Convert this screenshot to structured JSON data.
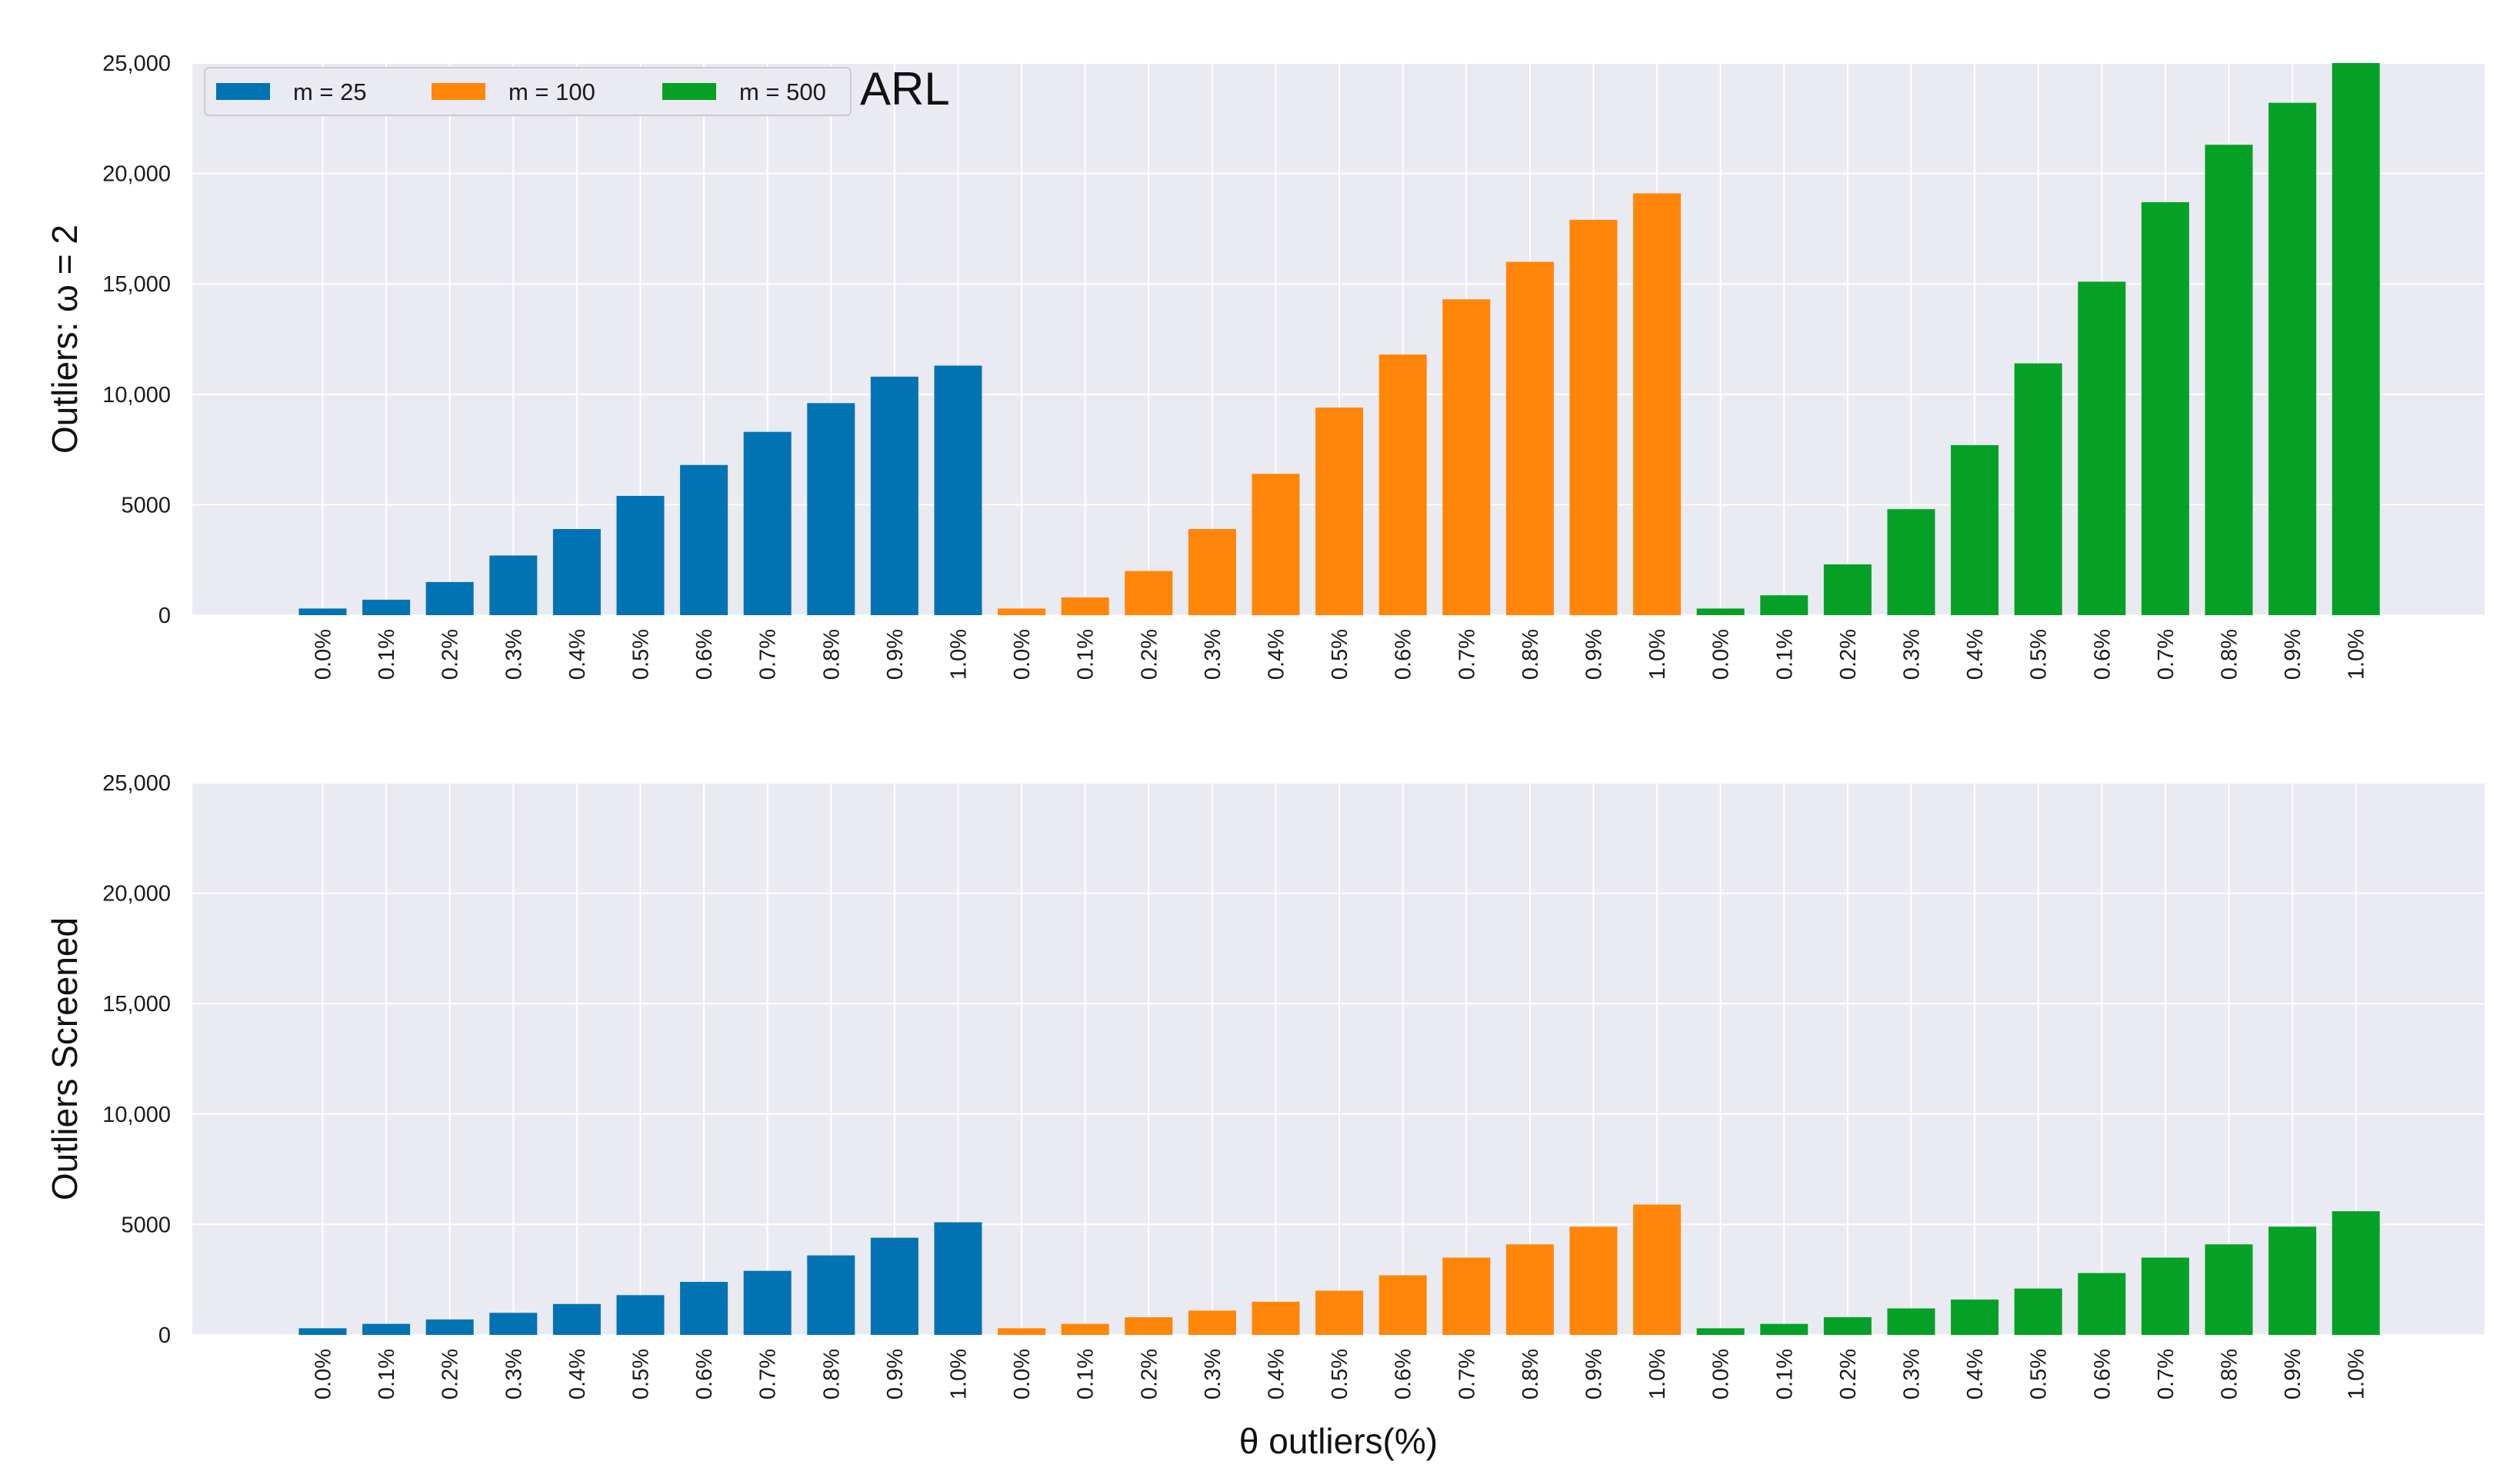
{
  "chart_data": [
    {
      "type": "bar",
      "panel": "top",
      "ylabel": "Outliers:  ω  =  2",
      "xlabel": "",
      "annotation": "ARL",
      "ylim": [
        0,
        25000
      ],
      "yticks": [
        0,
        5000,
        10000,
        15000,
        20000,
        25000
      ],
      "ytick_labels": [
        "0",
        "5000",
        "10,000",
        "15,000",
        "20,000",
        "25,000"
      ],
      "categories": [
        "0.0%",
        "0.1%",
        "0.2%",
        "0.3%",
        "0.4%",
        "0.5%",
        "0.6%",
        "0.7%",
        "0.8%",
        "0.9%",
        "1.0%"
      ],
      "legend_position": "top-left",
      "series": [
        {
          "name": "m = 25",
          "color": "#0173b2",
          "values": [
            300,
            700,
            1500,
            2700,
            3900,
            5400,
            6800,
            8300,
            9600,
            10800,
            11300
          ]
        },
        {
          "name": "m = 100",
          "color": "#ff8608",
          "values": [
            300,
            800,
            2000,
            3900,
            6400,
            9400,
            11800,
            14300,
            16000,
            17900,
            19100
          ]
        },
        {
          "name": "m = 500",
          "color": "#05a127",
          "values": [
            300,
            900,
            2300,
            4800,
            7700,
            11400,
            15100,
            18700,
            21300,
            23200,
            25000
          ]
        }
      ]
    },
    {
      "type": "bar",
      "panel": "bottom",
      "ylabel": "Outliers Screened",
      "xlabel": "θ outliers(%)",
      "ylim": [
        0,
        25000
      ],
      "yticks": [
        0,
        5000,
        10000,
        15000,
        20000,
        25000
      ],
      "ytick_labels": [
        "0",
        "5000",
        "10,000",
        "15,000",
        "20,000",
        "25,000"
      ],
      "categories": [
        "0.0%",
        "0.1%",
        "0.2%",
        "0.3%",
        "0.4%",
        "0.5%",
        "0.6%",
        "0.7%",
        "0.8%",
        "0.9%",
        "1.0%"
      ],
      "series": [
        {
          "name": "m = 25",
          "color": "#0173b2",
          "values": [
            300,
            500,
            700,
            1000,
            1400,
            1800,
            2400,
            2900,
            3600,
            4400,
            5100
          ]
        },
        {
          "name": "m = 100",
          "color": "#ff8608",
          "values": [
            300,
            500,
            800,
            1100,
            1500,
            2000,
            2700,
            3500,
            4100,
            4900,
            5900
          ]
        },
        {
          "name": "m = 500",
          "color": "#05a127",
          "values": [
            300,
            500,
            800,
            1200,
            1600,
            2100,
            2800,
            3500,
            4100,
            4900,
            5600
          ]
        }
      ]
    }
  ]
}
